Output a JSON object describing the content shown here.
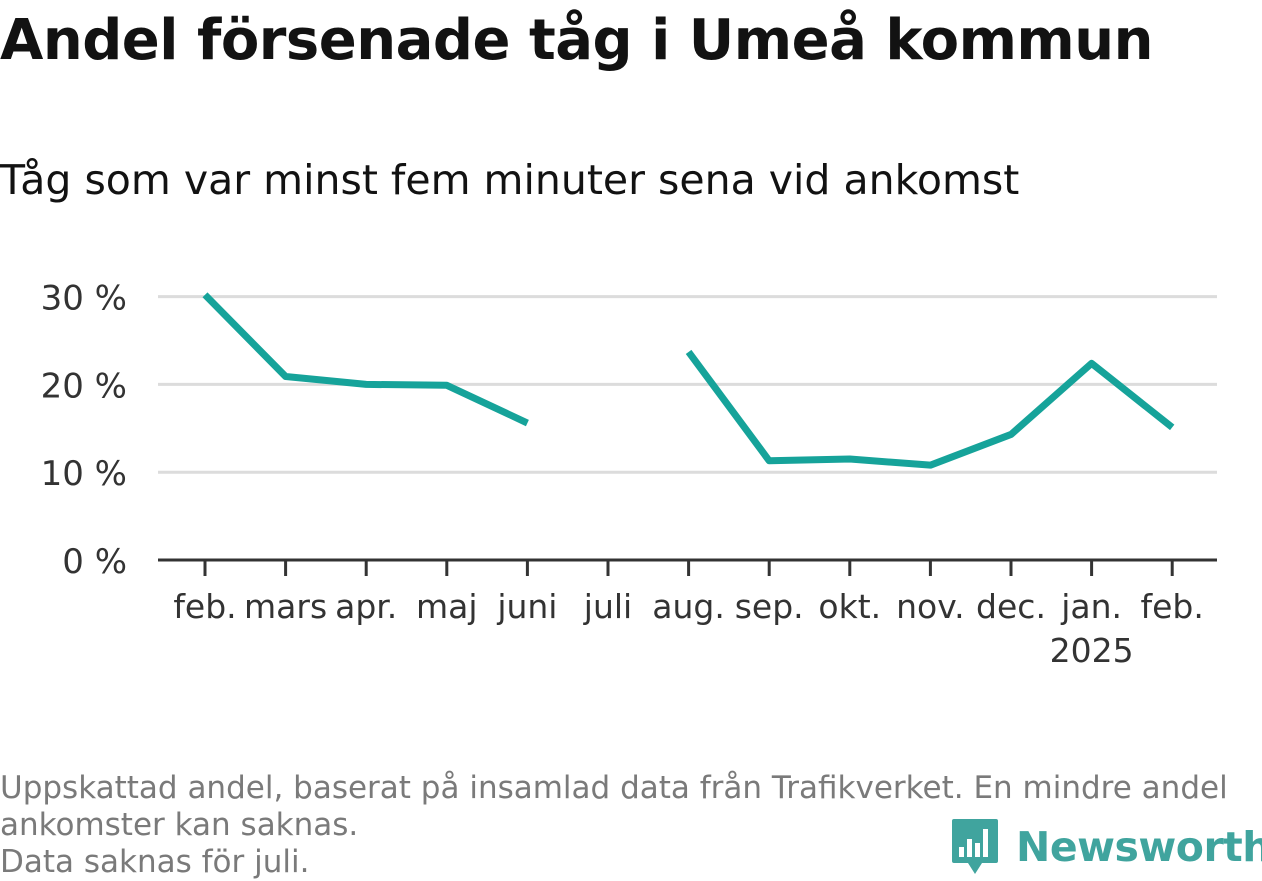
{
  "title": "Andel försenade tåg i Umeå kommun",
  "subtitle": "Tåg som var minst fem minuter sena vid ankomst",
  "chart_data": {
    "type": "line",
    "categories": [
      "feb.",
      "mars",
      "apr.",
      "maj",
      "juni",
      "juli",
      "aug.",
      "sep.",
      "okt.",
      "nov.",
      "dec.",
      "jan.",
      "feb."
    ],
    "category_sublabels": [
      "",
      "",
      "",
      "",
      "",
      "",
      "",
      "",
      "",
      "",
      "",
      "2025",
      ""
    ],
    "series": [
      {
        "values": [
          30.2,
          20.9,
          20.0,
          19.9,
          15.6,
          null,
          23.7,
          11.3,
          11.5,
          10.8,
          14.3,
          22.4,
          15.1
        ]
      }
    ],
    "y_ticks": [
      0,
      10,
      20,
      30
    ],
    "y_tick_labels": [
      "0 %",
      "10 %",
      "20 %",
      "30 %"
    ],
    "ylim": [
      0,
      30
    ],
    "grid": true,
    "color": "#16a39a"
  },
  "footnote": {
    "line1": "Uppskattad andel, baserat på insamlad data från Trafikverket. En mindre andel",
    "line2": "ankomster kan saknas.",
    "line3": "Data saknas för juli."
  },
  "logo": {
    "text": "Newsworthy",
    "icon": "bar-chart-pin-icon",
    "color": "#40a49e"
  }
}
